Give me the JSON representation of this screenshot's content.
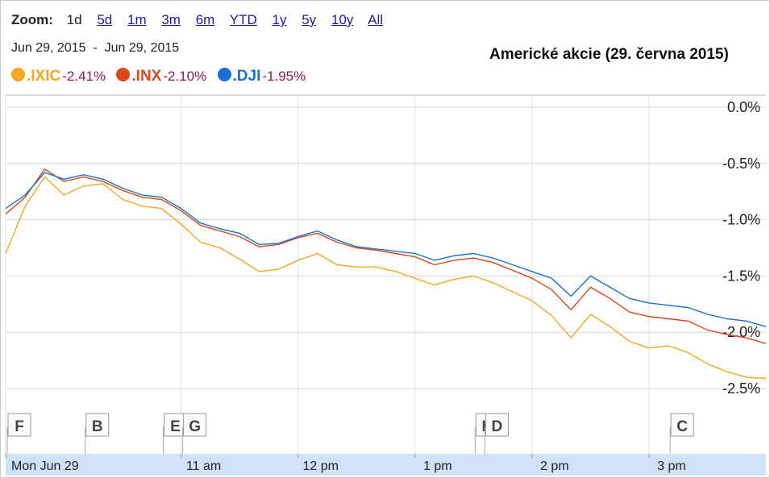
{
  "zoom": {
    "label": "Zoom:",
    "options": [
      "1d",
      "5d",
      "1m",
      "3m",
      "6m",
      "YTD",
      "1y",
      "5y",
      "10y",
      "All"
    ],
    "active": "1d"
  },
  "date_range": {
    "start": "Jun 29, 2015",
    "separator": "-",
    "end": "Jun 29, 2015"
  },
  "colors": {
    "IXIC": "#f5a623",
    "INX": "#d9471a",
    "DJI": "#1a6fd4",
    "change_text": "#8b1a4e",
    "axis_strip": "#cfe2f7"
  },
  "chart_data": {
    "type": "line",
    "title": "Americké akcie (29. června 2015)",
    "x_tick_labels": [
      "Mon Jun 29",
      "11 am",
      "12 pm",
      "1 pm",
      "2 pm",
      "3 pm"
    ],
    "x_ticks": [
      "09:30",
      "11:00",
      "12:00",
      "13:00",
      "14:00",
      "15:00"
    ],
    "x_range": [
      "09:30",
      "16:00"
    ],
    "y_tick_labels": [
      "0.0%",
      "-0.5%",
      "-1.0%",
      "-1.5%",
      "-2.0%",
      "-2.5%"
    ],
    "y_ticks": [
      0,
      -0.5,
      -1.0,
      -1.5,
      -2.0,
      -2.5
    ],
    "ylim": [
      -2.6,
      0.05
    ],
    "grid": true,
    "legend_placement": "top-left",
    "x": [
      "09:30",
      "09:40",
      "09:50",
      "10:00",
      "10:10",
      "10:20",
      "10:30",
      "10:40",
      "10:50",
      "11:00",
      "11:10",
      "11:20",
      "11:30",
      "11:40",
      "11:50",
      "12:00",
      "12:10",
      "12:20",
      "12:30",
      "12:40",
      "12:50",
      "13:00",
      "13:10",
      "13:20",
      "13:30",
      "13:40",
      "13:50",
      "14:00",
      "14:10",
      "14:20",
      "14:30",
      "14:40",
      "14:50",
      "15:00",
      "15:10",
      "15:20",
      "15:30",
      "15:40",
      "15:50",
      "16:00"
    ],
    "series": [
      {
        "name": ".IXIC",
        "change": "-2.41%",
        "values": [
          -1.3,
          -0.88,
          -0.62,
          -0.78,
          -0.7,
          -0.68,
          -0.82,
          -0.88,
          -0.9,
          -1.04,
          -1.2,
          -1.25,
          -1.35,
          -1.46,
          -1.44,
          -1.36,
          -1.3,
          -1.4,
          -1.42,
          -1.42,
          -1.46,
          -1.52,
          -1.58,
          -1.53,
          -1.5,
          -1.56,
          -1.64,
          -1.72,
          -1.85,
          -2.05,
          -1.84,
          -1.95,
          -2.08,
          -2.14,
          -2.12,
          -2.18,
          -2.28,
          -2.35,
          -2.4,
          -2.41
        ]
      },
      {
        "name": ".INX",
        "change": "-2.10%",
        "values": [
          -0.95,
          -0.8,
          -0.55,
          -0.66,
          -0.62,
          -0.66,
          -0.74,
          -0.8,
          -0.82,
          -0.92,
          -1.05,
          -1.1,
          -1.15,
          -1.24,
          -1.22,
          -1.16,
          -1.12,
          -1.2,
          -1.25,
          -1.27,
          -1.3,
          -1.33,
          -1.4,
          -1.36,
          -1.34,
          -1.38,
          -1.45,
          -1.52,
          -1.62,
          -1.8,
          -1.6,
          -1.7,
          -1.82,
          -1.86,
          -1.88,
          -1.9,
          -1.98,
          -2.02,
          -2.05,
          -2.1
        ]
      },
      {
        "name": ".DJI",
        "change": "-1.95%",
        "values": [
          -0.9,
          -0.78,
          -0.58,
          -0.64,
          -0.6,
          -0.64,
          -0.72,
          -0.78,
          -0.8,
          -0.9,
          -1.03,
          -1.08,
          -1.12,
          -1.22,
          -1.21,
          -1.15,
          -1.1,
          -1.18,
          -1.24,
          -1.26,
          -1.28,
          -1.3,
          -1.36,
          -1.32,
          -1.3,
          -1.34,
          -1.4,
          -1.46,
          -1.52,
          -1.68,
          -1.5,
          -1.6,
          -1.7,
          -1.74,
          -1.76,
          -1.78,
          -1.84,
          -1.88,
          -1.9,
          -1.95
        ]
      }
    ],
    "annotations": [
      {
        "label": "F",
        "x": "09:30"
      },
      {
        "label": "B",
        "x": "10:10"
      },
      {
        "label": "E",
        "x": "10:50"
      },
      {
        "label": "G",
        "x": "11:00"
      },
      {
        "label": "H",
        "x": "13:30"
      },
      {
        "label": "D",
        "x": "13:35"
      },
      {
        "label": "C",
        "x": "15:10"
      }
    ]
  }
}
